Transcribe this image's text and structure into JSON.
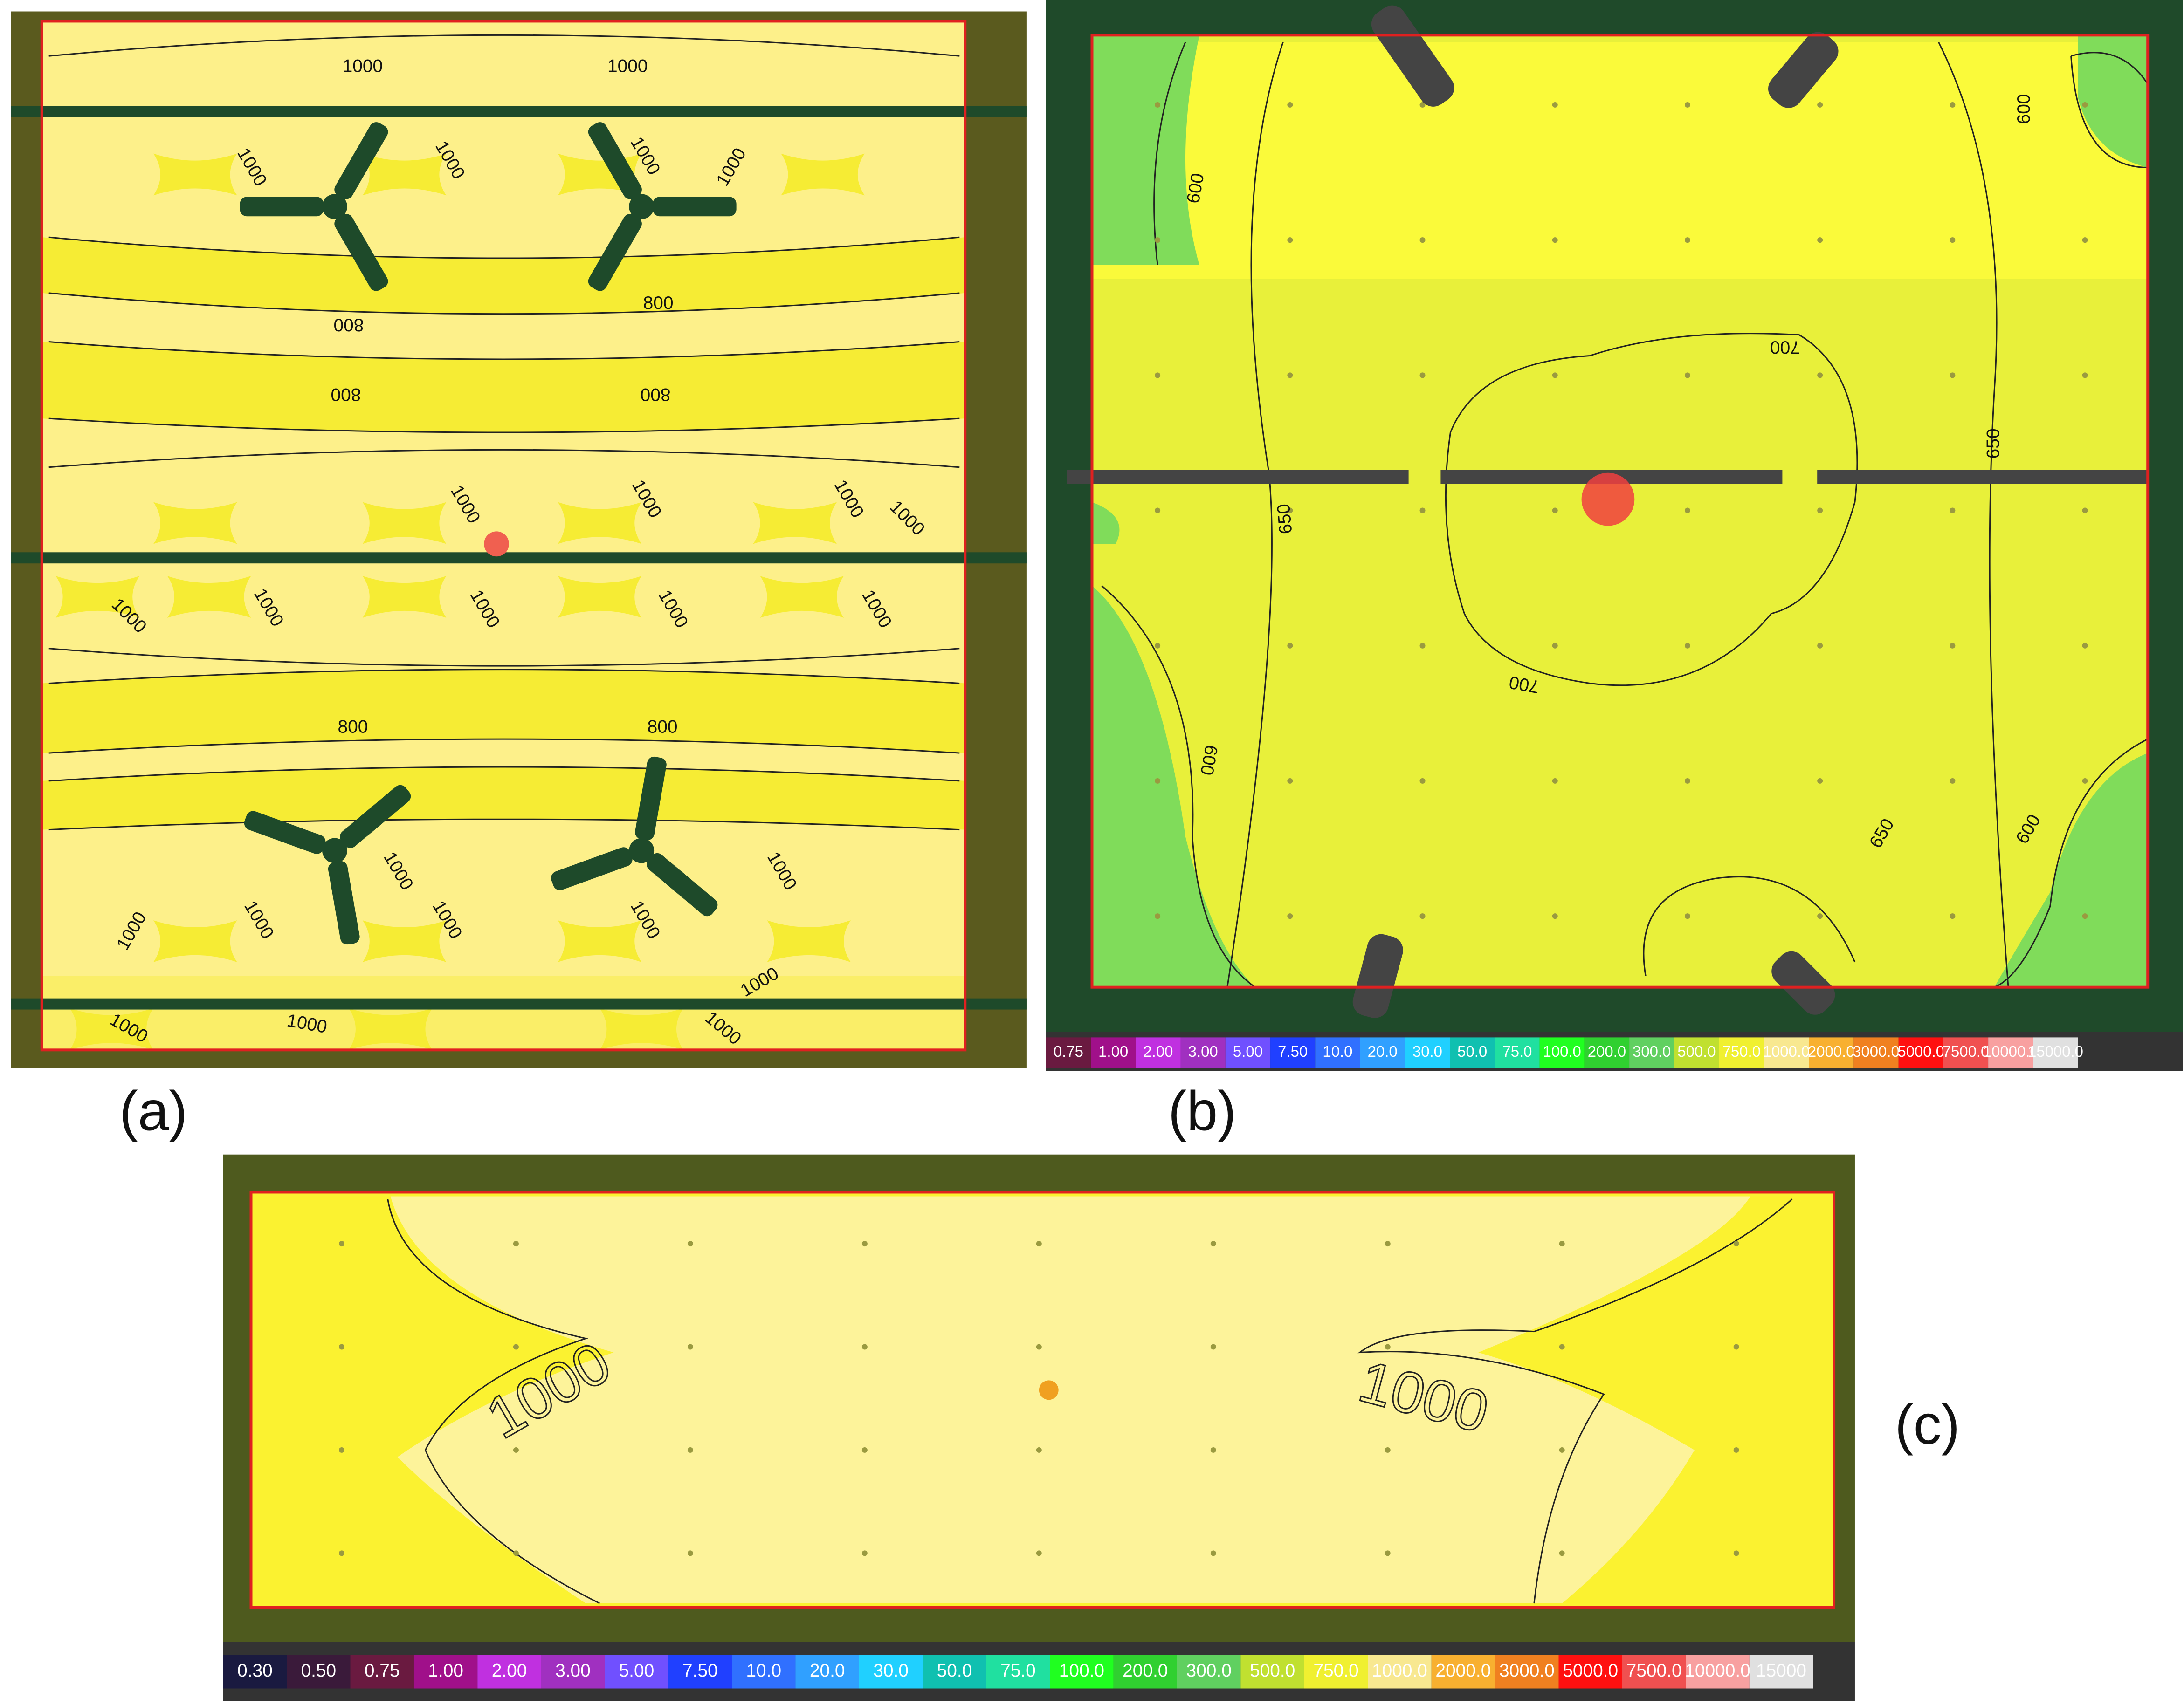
{
  "panels": [
    {
      "label": "(a)",
      "contour_labels": [
        "1000",
        "1000",
        "1000",
        "1000",
        "1000",
        "1000",
        "800",
        "800",
        "800",
        "800",
        "1000",
        "1000",
        "1000",
        "1000",
        "1000",
        "1000",
        "1000",
        "1000",
        "1000",
        "800",
        "800",
        "1000",
        "1000",
        "1000",
        "1000",
        "1000",
        "1000",
        "1000",
        "1000",
        "1000",
        "1000"
      ]
    },
    {
      "label": "(b)",
      "contour_labels": [
        "600",
        "600",
        "700",
        "650",
        "650",
        "700",
        "600",
        "650",
        "600"
      ],
      "legend": [
        {
          "label": "0.75",
          "color": "#6a1a40"
        },
        {
          "label": "1.00",
          "color": "#a0108a"
        },
        {
          "label": "2.00",
          "color": "#c030e0"
        },
        {
          "label": "3.00",
          "color": "#a030c0"
        },
        {
          "label": "5.00",
          "color": "#7050ff"
        },
        {
          "label": "7.50",
          "color": "#2040ff"
        },
        {
          "label": "10.0",
          "color": "#3070ff"
        },
        {
          "label": "20.0",
          "color": "#30a0ff"
        },
        {
          "label": "30.0",
          "color": "#20d0ff"
        },
        {
          "label": "50.0",
          "color": "#10c0b0"
        },
        {
          "label": "75.0",
          "color": "#20e0a0"
        },
        {
          "label": "100.0",
          "color": "#20ff20"
        },
        {
          "label": "200.0",
          "color": "#30d030"
        },
        {
          "label": "300.0",
          "color": "#60d060"
        },
        {
          "label": "500.0",
          "color": "#c0e030"
        },
        {
          "label": "750.0",
          "color": "#f0f030"
        },
        {
          "label": "1000.0",
          "color": "#f8e890"
        },
        {
          "label": "2000.0",
          "color": "#f8b030"
        },
        {
          "label": "3000.0",
          "color": "#f08020"
        },
        {
          "label": "5000.0",
          "color": "#ff1010"
        },
        {
          "label": "7500.0",
          "color": "#f05050"
        },
        {
          "label": "10000.0",
          "color": "#f8a0a0"
        },
        {
          "label": "15000.0",
          "color": "#e0e0e0"
        }
      ]
    },
    {
      "label": "(c)",
      "contour_labels": [
        "1000",
        "1000"
      ],
      "legend": [
        {
          "label": "0.30",
          "color": "#1a1a40"
        },
        {
          "label": "0.50",
          "color": "#3a1a3a"
        },
        {
          "label": "0.75",
          "color": "#6a1a40"
        },
        {
          "label": "1.00",
          "color": "#a0108a"
        },
        {
          "label": "2.00",
          "color": "#c030e0"
        },
        {
          "label": "3.00",
          "color": "#a030c0"
        },
        {
          "label": "5.00",
          "color": "#7050ff"
        },
        {
          "label": "7.50",
          "color": "#2040ff"
        },
        {
          "label": "10.0",
          "color": "#3070ff"
        },
        {
          "label": "20.0",
          "color": "#30a0ff"
        },
        {
          "label": "30.0",
          "color": "#20d0ff"
        },
        {
          "label": "50.0",
          "color": "#10c0b0"
        },
        {
          "label": "75.0",
          "color": "#20e0a0"
        },
        {
          "label": "100.0",
          "color": "#20ff20"
        },
        {
          "label": "200.0",
          "color": "#30d030"
        },
        {
          "label": "300.0",
          "color": "#60d060"
        },
        {
          "label": "500.0",
          "color": "#c0e030"
        },
        {
          "label": "750.0",
          "color": "#f0f030"
        },
        {
          "label": "1000.0",
          "color": "#f8e890"
        },
        {
          "label": "2000.0",
          "color": "#f8b030"
        },
        {
          "label": "3000.0",
          "color": "#f08020"
        },
        {
          "label": "5000.0",
          "color": "#ff1010"
        },
        {
          "label": "7500.0",
          "color": "#f05050"
        },
        {
          "label": "10000.0",
          "color": "#f8a0a0"
        },
        {
          "label": "15000",
          "color": "#e0e0e0"
        }
      ]
    }
  ]
}
